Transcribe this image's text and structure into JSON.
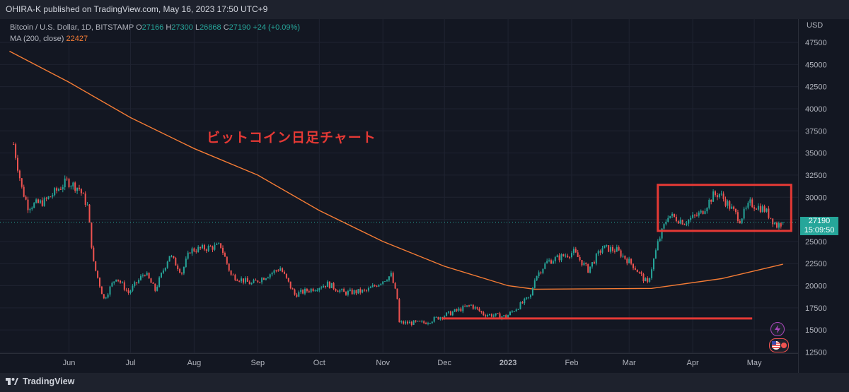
{
  "header": {
    "published": "OHIRA-K published on TradingView.com, May 16, 2023 17:50 UTC+9"
  },
  "legend": {
    "symbol": "Bitcoin / U.S. Dollar, 1D, BITSTAMP",
    "o_label": "O",
    "o": "27166",
    "h_label": "H",
    "h": "27300",
    "l_label": "L",
    "l": "26868",
    "c_label": "C",
    "c": "27190",
    "change": "+24 (+0.09%)",
    "ma_label": "MA (200, close)",
    "ma_value": "22427"
  },
  "annotation": "ビットコイン日足チャート",
  "price_scale": {
    "currency": "USD",
    "current_price": "27190",
    "countdown": "15:09:50"
  },
  "footer": {
    "brand": "TradingView"
  },
  "colors": {
    "up": "#26a69a",
    "down": "#ef5350",
    "ma": "#f57c35",
    "annotation": "#e53935"
  },
  "icons": {
    "bolt": "bolt-icon",
    "flag": "us-flag-icon"
  },
  "chart_data": {
    "type": "candlestick",
    "title": "ビットコイン日足チャート",
    "x_ticks": [
      "Jun",
      "Jul",
      "Aug",
      "Sep",
      "Oct",
      "Nov",
      "Dec",
      "2023",
      "Feb",
      "Mar",
      "Apr",
      "May"
    ],
    "y_ticks": [
      12500,
      15000,
      17500,
      20000,
      22500,
      25000,
      27500,
      30000,
      32500,
      35000,
      37500,
      40000,
      42500,
      45000,
      47500
    ],
    "ylim": [
      12500,
      48000
    ],
    "price_path": [
      [
        "2022-05-05",
        36000
      ],
      [
        "2022-05-09",
        31000
      ],
      [
        "2022-05-12",
        29000
      ],
      [
        "2022-05-20",
        29500
      ],
      [
        "2022-05-31",
        31800
      ],
      [
        "2022-06-06",
        31000
      ],
      [
        "2022-06-10",
        29000
      ],
      [
        "2022-06-13",
        22500
      ],
      [
        "2022-06-18",
        18500
      ],
      [
        "2022-06-24",
        21000
      ],
      [
        "2022-06-30",
        19200
      ],
      [
        "2022-07-08",
        21500
      ],
      [
        "2022-07-13",
        19500
      ],
      [
        "2022-07-20",
        23500
      ],
      [
        "2022-07-26",
        21500
      ],
      [
        "2022-07-30",
        24000
      ],
      [
        "2022-08-14",
        24500
      ],
      [
        "2022-08-19",
        21200
      ],
      [
        "2022-08-29",
        20200
      ],
      [
        "2022-09-12",
        22000
      ],
      [
        "2022-09-19",
        19000
      ],
      [
        "2022-10-05",
        20200
      ],
      [
        "2022-10-13",
        19200
      ],
      [
        "2022-10-24",
        19400
      ],
      [
        "2022-11-05",
        21200
      ],
      [
        "2022-11-08",
        18500
      ],
      [
        "2022-11-09",
        15800
      ],
      [
        "2022-11-21",
        15800
      ],
      [
        "2022-12-05",
        17000
      ],
      [
        "2022-12-14",
        17800
      ],
      [
        "2022-12-20",
        16800
      ],
      [
        "2022-12-31",
        16500
      ],
      [
        "2023-01-12",
        18800
      ],
      [
        "2023-01-14",
        20900
      ],
      [
        "2023-01-20",
        22700
      ],
      [
        "2023-02-02",
        23800
      ],
      [
        "2023-02-09",
        21800
      ],
      [
        "2023-02-16",
        24300
      ],
      [
        "2023-02-23",
        24000
      ],
      [
        "2023-03-03",
        22300
      ],
      [
        "2023-03-10",
        20200
      ],
      [
        "2023-03-15",
        24800
      ],
      [
        "2023-03-20",
        28000
      ],
      [
        "2023-03-28",
        27200
      ],
      [
        "2023-04-05",
        28200
      ],
      [
        "2023-04-11",
        30200
      ],
      [
        "2023-04-14",
        30400
      ],
      [
        "2023-04-24",
        27500
      ],
      [
        "2023-04-29",
        29300
      ],
      [
        "2023-05-06",
        28600
      ],
      [
        "2023-05-12",
        26800
      ],
      [
        "2023-05-15",
        27190
      ]
    ],
    "ma200": [
      [
        "2022-05-03",
        46500
      ],
      [
        "2022-06-01",
        43000
      ],
      [
        "2022-07-01",
        39000
      ],
      [
        "2022-08-01",
        35500
      ],
      [
        "2022-09-01",
        32500
      ],
      [
        "2022-10-01",
        28500
      ],
      [
        "2022-11-01",
        25000
      ],
      [
        "2022-12-01",
        22200
      ],
      [
        "2023-01-01",
        20000
      ],
      [
        "2023-01-14",
        19600
      ],
      [
        "2023-03-12",
        19700
      ],
      [
        "2023-04-15",
        20800
      ],
      [
        "2023-05-15",
        22427
      ]
    ],
    "markups": {
      "support_line": {
        "y": 16300,
        "x_start": "2022-11-30",
        "x_end": "2023-04-30"
      },
      "range_box": {
        "y_low": 26200,
        "y_high": 31400,
        "x_start": "2023-03-15",
        "x_end": "2023-05-19"
      }
    }
  }
}
